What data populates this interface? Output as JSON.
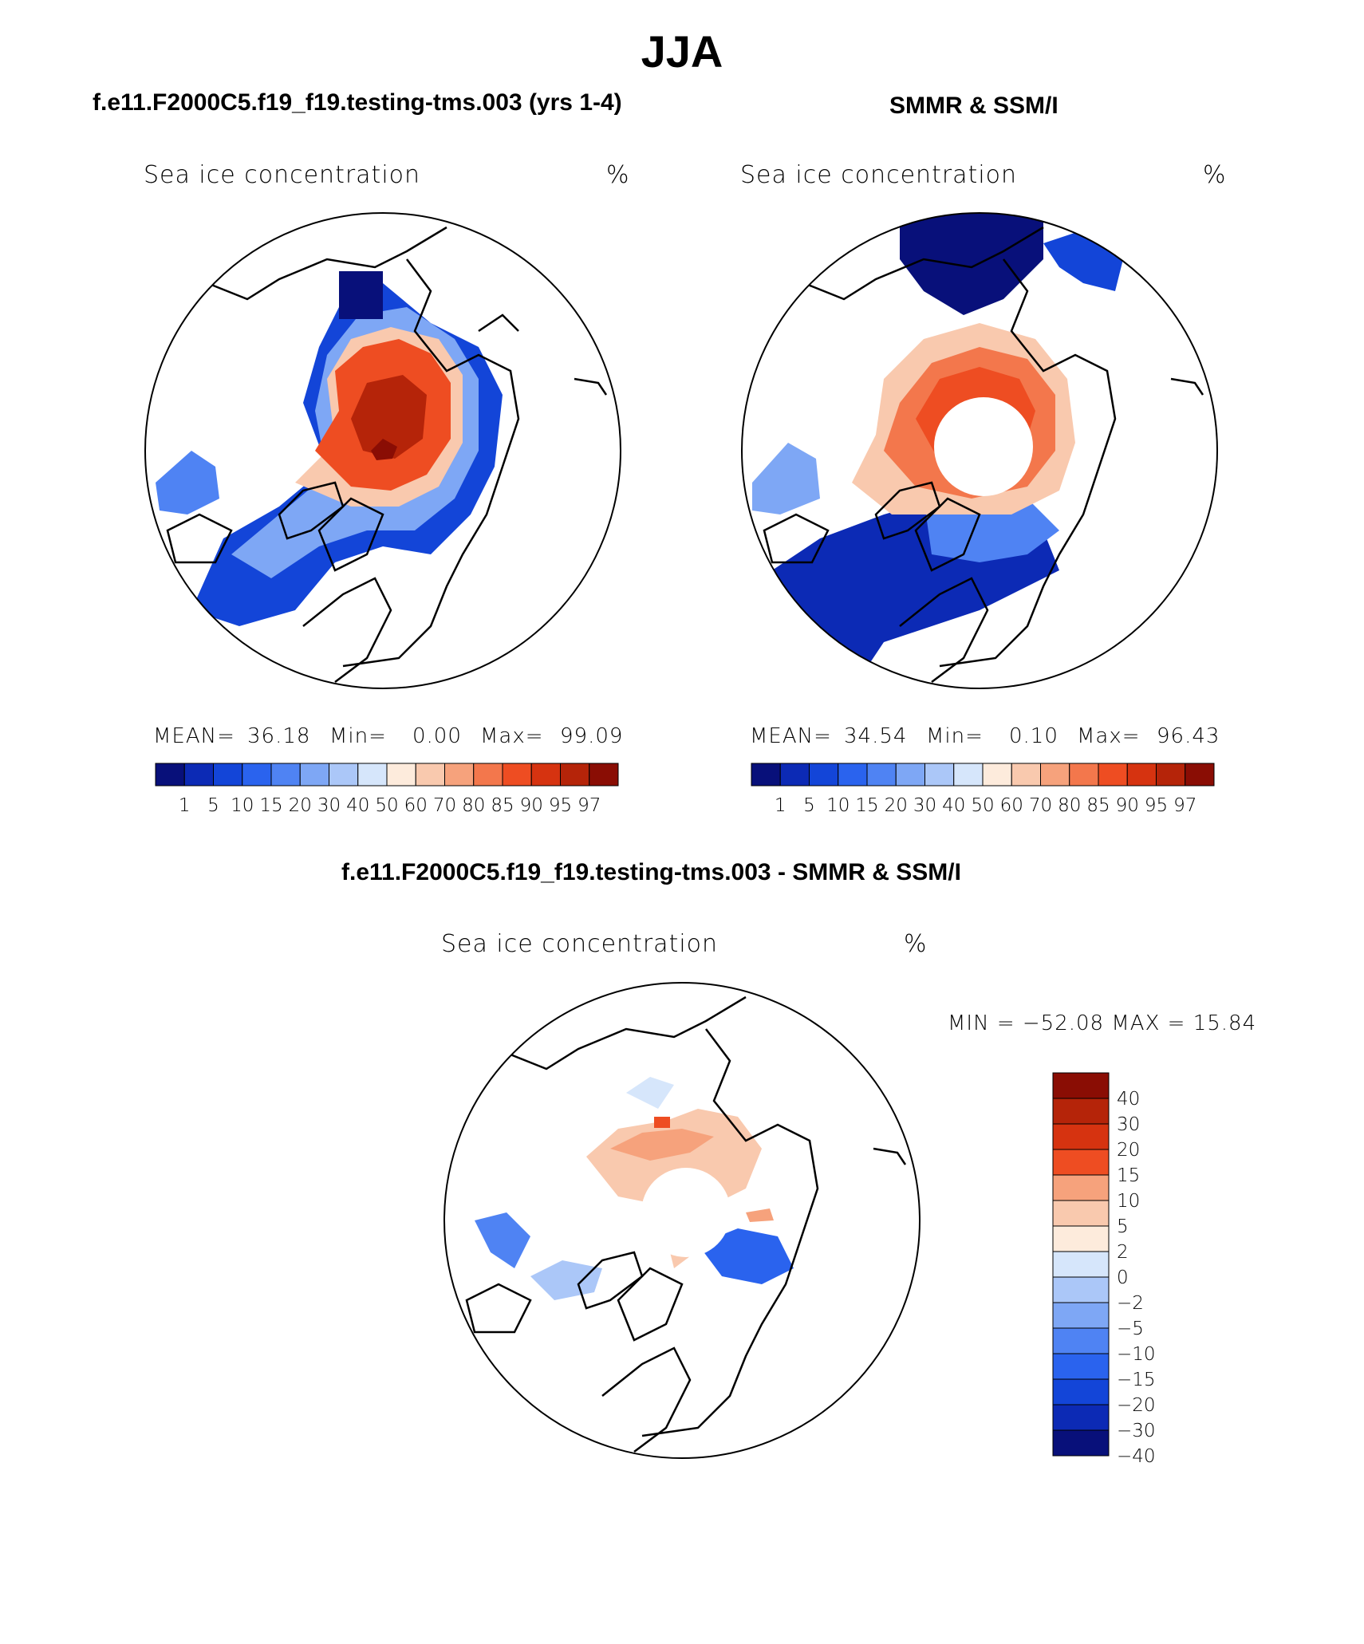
{
  "page_title": "JJA",
  "panels": [
    {
      "title": "f.e11.F2000C5.f19_f19.testing-tms.003 (yrs 1-4)",
      "label_left": "Sea ice concentration",
      "label_right": "%",
      "stats": {
        "mean_label": "MEAN=",
        "mean": "36.18",
        "min_label": "Min=",
        "min": "0.00",
        "max_label": "Max=",
        "max": "99.09"
      }
    },
    {
      "title": "SMMR & SSM/I",
      "label_left": "Sea ice concentration",
      "label_right": "%",
      "stats": {
        "mean_label": "MEAN=",
        "mean": "34.54",
        "min_label": "Min=",
        "min": "0.10",
        "max_label": "Max=",
        "max": "96.43"
      }
    },
    {
      "title": "f.e11.F2000C5.f19_f19.testing-tms.003 - SMMR & SSM/I",
      "label_left": "Sea ice concentration",
      "label_right": "%",
      "minmax": "MIN = −52.08 MAX =   15.84"
    }
  ],
  "colorbar_top": {
    "colors": [
      "#08107a",
      "#0c2ab5",
      "#1345d8",
      "#2a63ee",
      "#4f83f3",
      "#7ea7f5",
      "#abc7f8",
      "#d6e6fb",
      "#fdebdc",
      "#f9c9ae",
      "#f6a27c",
      "#f3774c",
      "#ee4d22",
      "#d63310",
      "#b52409",
      "#8a0d04"
    ],
    "ticks": [
      "1",
      "5",
      "10",
      "15",
      "20",
      "30",
      "40",
      "50",
      "60",
      "70",
      "80",
      "85",
      "90",
      "95",
      "97"
    ]
  },
  "colorbar_diff": {
    "colors": [
      "#8a0d04",
      "#b52409",
      "#d63310",
      "#ee4d22",
      "#f6a27c",
      "#f9c9ae",
      "#fdebdc",
      "#d6e6fb",
      "#abc7f8",
      "#7ea7f5",
      "#4f83f3",
      "#2a63ee",
      "#1345d8",
      "#0c2ab5",
      "#08107a"
    ],
    "ticks": [
      "40",
      "30",
      "20",
      "15",
      "10",
      "5",
      "2",
      "0",
      "−2",
      "−5",
      "−10",
      "−15",
      "−20",
      "−30",
      "−40"
    ]
  }
}
